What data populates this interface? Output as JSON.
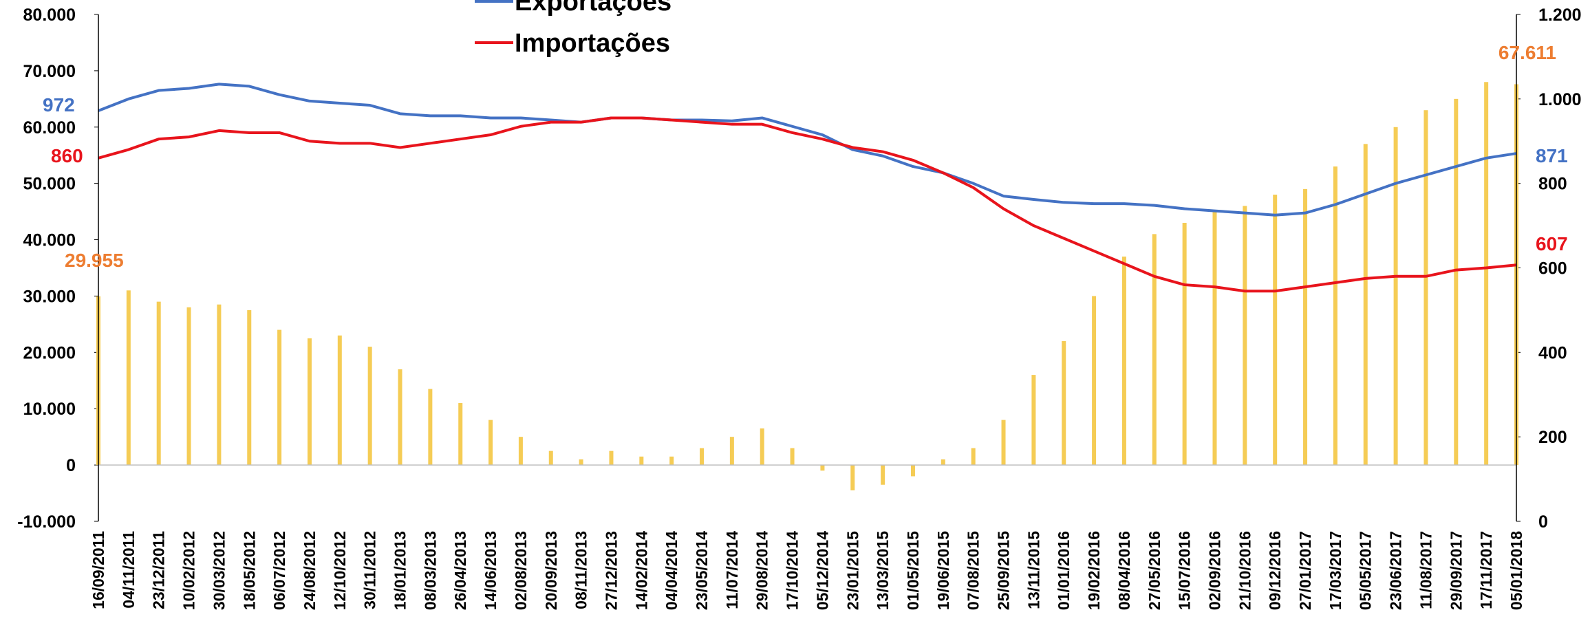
{
  "chart_data": {
    "type": "combo",
    "legend": "top-center",
    "categories": [
      "16/09/2011",
      "04/11/2011",
      "23/12/2011",
      "10/02/2012",
      "30/03/2012",
      "18/05/2012",
      "06/07/2012",
      "24/08/2012",
      "12/10/2012",
      "30/11/2012",
      "18/01/2013",
      "08/03/2013",
      "26/04/2013",
      "14/06/2013",
      "02/08/2013",
      "20/09/2013",
      "08/11/2013",
      "27/12/2013",
      "14/02/2014",
      "04/04/2014",
      "23/05/2014",
      "11/07/2014",
      "29/08/2014",
      "17/10/2014",
      "05/12/2014",
      "23/01/2015",
      "13/03/2015",
      "01/05/2015",
      "19/06/2015",
      "07/08/2015",
      "25/09/2015",
      "13/11/2015",
      "01/01/2016",
      "19/02/2016",
      "08/04/2016",
      "27/05/2016",
      "15/07/2016",
      "02/09/2016",
      "21/10/2016",
      "09/12/2016",
      "27/01/2017",
      "17/03/2017",
      "05/05/2017",
      "23/06/2017",
      "11/08/2017",
      "29/09/2017",
      "17/11/2017",
      "05/01/2018"
    ],
    "series": [
      {
        "type": "bar",
        "color": "#f5cc55",
        "values": [
          29955,
          31000,
          29000,
          28000,
          28500,
          27500,
          24000,
          22500,
          23000,
          21000,
          17000,
          13500,
          11000,
          8000,
          5000,
          2500,
          1000,
          2500,
          1500,
          1500,
          3000,
          5000,
          6500,
          3000,
          -1000,
          -4500,
          -3500,
          -2000,
          1000,
          3000,
          8000,
          16000,
          22000,
          30000,
          37000,
          41000,
          43000,
          45000,
          46000,
          48000,
          49000,
          53000,
          57000,
          60000,
          63000,
          65000,
          68000,
          67611
        ]
      },
      {
        "type": "line",
        "name": "Exportações",
        "color": "#4472c4",
        "axis": "y2",
        "values": [
          972,
          1000,
          1020,
          1025,
          1035,
          1030,
          1010,
          995,
          990,
          985,
          965,
          960,
          960,
          955,
          955,
          950,
          945,
          955,
          955,
          950,
          950,
          948,
          955,
          935,
          915,
          880,
          865,
          840,
          825,
          800,
          770,
          762,
          755,
          752,
          752,
          748,
          740,
          735,
          730,
          725,
          730,
          750,
          775,
          800,
          820,
          840,
          860,
          871
        ]
      },
      {
        "type": "line",
        "name": "Importações",
        "color": "#e8141c",
        "axis": "y2",
        "values": [
          860,
          880,
          905,
          910,
          925,
          920,
          920,
          900,
          895,
          895,
          885,
          895,
          905,
          915,
          935,
          945,
          945,
          955,
          955,
          950,
          945,
          940,
          940,
          920,
          905,
          885,
          875,
          855,
          825,
          790,
          740,
          700,
          670,
          640,
          610,
          580,
          560,
          555,
          545,
          545,
          555,
          565,
          575,
          580,
          580,
          595,
          600,
          607
        ]
      }
    ],
    "ylim": [
      -10000,
      80000
    ],
    "yticks": [
      {
        "value": -10000,
        "label": "-10.000"
      },
      0,
      {
        "value": 10000,
        "label": "10.000"
      },
      {
        "value": 20000,
        "label": "20.000"
      },
      {
        "value": 30000,
        "label": "30.000"
      },
      {
        "value": 40000,
        "label": "40.000"
      },
      {
        "value": 50000,
        "label": "50.000"
      },
      {
        "value": 60000,
        "label": "60.000"
      },
      {
        "value": 70000,
        "label": "70.000"
      },
      {
        "value": 80000,
        "label": "80.000"
      }
    ],
    "y2lim": [
      0,
      1200
    ],
    "y2ticks": [
      0,
      200,
      400,
      600,
      800,
      {
        "value": 1000,
        "label": "1.000"
      },
      {
        "value": 1200,
        "label": "1.200"
      }
    ],
    "annotations": [
      {
        "text": "972",
        "color": "#4472c4"
      },
      {
        "text": "860",
        "color": "#e8141c"
      },
      {
        "text": "29.955",
        "color": "#ed7d31"
      },
      {
        "text": "67.611",
        "color": "#ed7d31"
      },
      {
        "text": "871",
        "color": "#4472c4"
      },
      {
        "text": "607",
        "color": "#e8141c"
      }
    ]
  }
}
